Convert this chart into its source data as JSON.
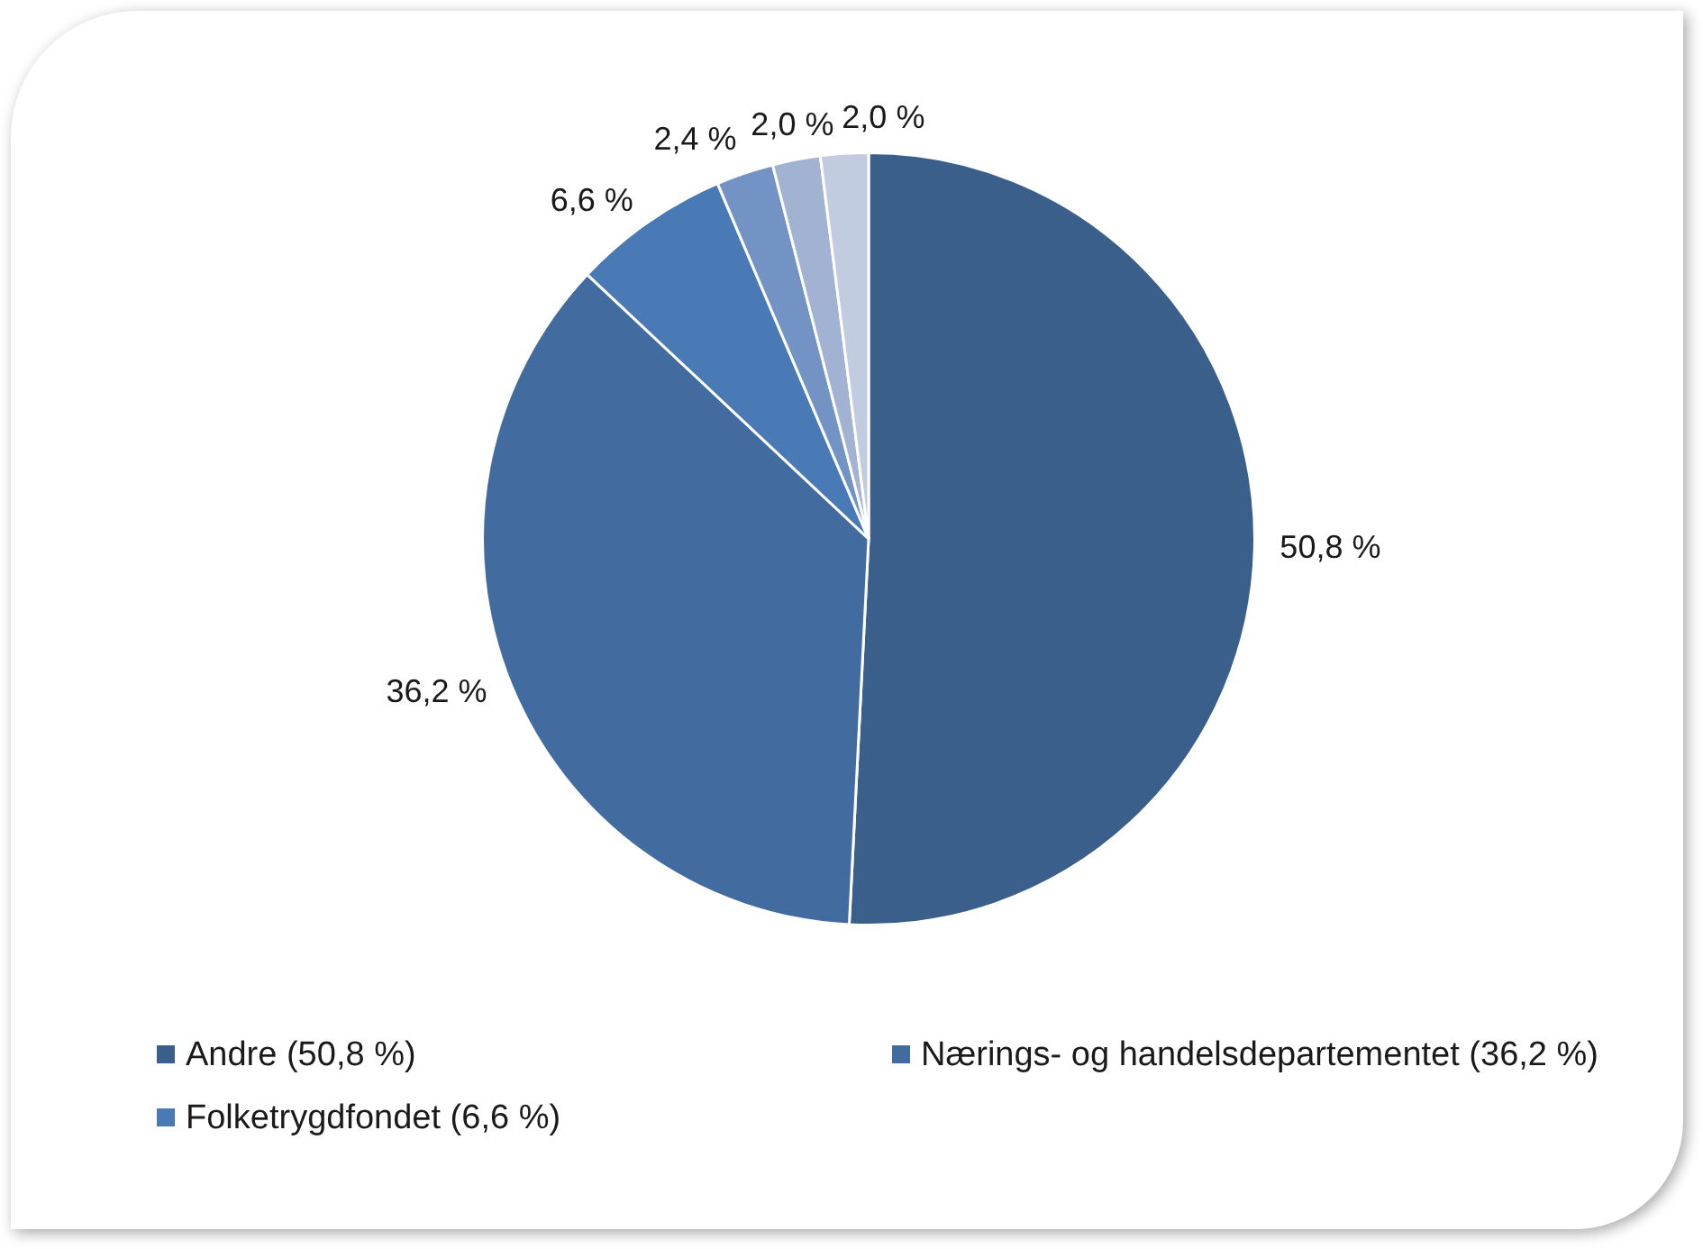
{
  "chart_data": {
    "type": "pie",
    "categories": [
      "Andre (50,8 %)",
      "Nærings- og handelsdepartementet (36,2 %)",
      "Folketrygdfondet (6,6 %)",
      null,
      null,
      null
    ],
    "values": [
      50.8,
      36.2,
      6.6,
      2.4,
      2.0,
      2.0
    ],
    "value_labels": [
      "50,8 %",
      "36,2 %",
      "6,6 %",
      "2,4 %",
      "2,0 %",
      "2,0 %"
    ],
    "colors": [
      "#3a5f8b",
      "#426ca0",
      "#4a7ab5",
      "#7393c4",
      "#a1b2d3",
      "#c2cce0"
    ],
    "legend": "bottom"
  }
}
